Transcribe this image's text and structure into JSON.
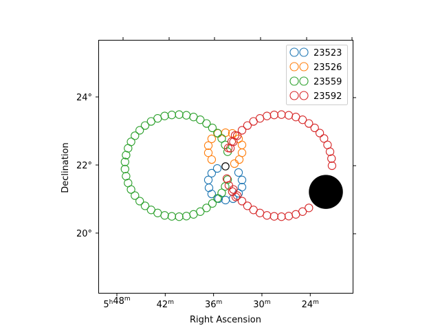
{
  "chart_data": {
    "type": "scatter",
    "title": "",
    "xlabel": "Right Ascension",
    "ylabel": "Declination",
    "x_units": "RA minutes past 5h",
    "y_units": "degrees",
    "xlim": [
      50.3,
      18.7
    ],
    "ylim": [
      18.3,
      25.7
    ],
    "x_inverted": true,
    "grid": false,
    "legend_position": "top-right",
    "x_ticks": [
      {
        "value": 48,
        "parts": [
          [
            "5",
            "h"
          ],
          [
            "48",
            "m"
          ]
        ]
      },
      {
        "value": 42,
        "parts": [
          [
            "42",
            "m"
          ]
        ]
      },
      {
        "value": 36,
        "parts": [
          [
            "36",
            "m"
          ]
        ]
      },
      {
        "value": 30,
        "parts": [
          [
            "30",
            "m"
          ]
        ]
      },
      {
        "value": 24,
        "parts": [
          [
            "24",
            "m"
          ]
        ]
      }
    ],
    "y_ticks": [
      {
        "value": 24,
        "label": "24°"
      },
      {
        "value": 22,
        "label": "22°"
      },
      {
        "value": 20,
        "label": "20°"
      }
    ],
    "marker": "open-circle",
    "series": [
      {
        "name": "23523",
        "color": "#1f77b4",
        "points": [
          [
            35.54,
            21.9
          ],
          [
            36.23,
            21.76
          ],
          [
            36.65,
            21.56
          ],
          [
            36.57,
            21.33
          ],
          [
            36.23,
            21.15
          ],
          [
            35.37,
            21.01
          ],
          [
            34.52,
            20.97
          ],
          [
            33.58,
            21.01
          ],
          [
            32.9,
            21.17
          ],
          [
            32.47,
            21.35
          ],
          [
            32.47,
            21.56
          ],
          [
            32.9,
            21.78
          ]
        ]
      },
      {
        "name": "23526",
        "color": "#ff7f0e",
        "points": [
          [
            36.65,
            22.36
          ],
          [
            36.65,
            22.57
          ],
          [
            36.23,
            22.77
          ],
          [
            35.46,
            22.93
          ],
          [
            34.52,
            22.95
          ],
          [
            33.67,
            22.93
          ],
          [
            32.9,
            22.77
          ],
          [
            32.47,
            22.59
          ],
          [
            32.47,
            22.36
          ],
          [
            32.81,
            22.16
          ],
          [
            33.41,
            22.04
          ],
          [
            36.23,
            22.16
          ]
        ]
      },
      {
        "name": "23559",
        "color": "#2ca02c",
        "points": [
          [
            34.25,
            22.39
          ],
          [
            34.56,
            22.59
          ],
          [
            34.99,
            22.78
          ],
          [
            35.52,
            22.94
          ],
          [
            36.15,
            23.09
          ],
          [
            36.87,
            23.22
          ],
          [
            37.65,
            23.33
          ],
          [
            38.49,
            23.41
          ],
          [
            39.37,
            23.46
          ],
          [
            40.27,
            23.48
          ],
          [
            41.18,
            23.47
          ],
          [
            42.07,
            23.44
          ],
          [
            42.94,
            23.37
          ],
          [
            43.75,
            23.28
          ],
          [
            44.5,
            23.16
          ],
          [
            45.17,
            23.02
          ],
          [
            45.76,
            22.86
          ],
          [
            46.24,
            22.68
          ],
          [
            46.61,
            22.49
          ],
          [
            46.86,
            22.29
          ],
          [
            46.99,
            22.09
          ],
          [
            46.99,
            21.88
          ],
          [
            46.86,
            21.67
          ],
          [
            46.61,
            21.47
          ],
          [
            46.24,
            21.28
          ],
          [
            45.76,
            21.1
          ],
          [
            45.17,
            20.94
          ],
          [
            44.5,
            20.8
          ],
          [
            43.75,
            20.68
          ],
          [
            42.94,
            20.59
          ],
          [
            42.07,
            20.52
          ],
          [
            41.18,
            20.49
          ],
          [
            40.27,
            20.48
          ],
          [
            39.37,
            20.5
          ],
          [
            38.49,
            20.55
          ],
          [
            37.65,
            20.63
          ],
          [
            36.87,
            20.74
          ],
          [
            36.15,
            20.87
          ],
          [
            35.52,
            21.02
          ],
          [
            34.99,
            21.18
          ],
          [
            34.56,
            21.37
          ],
          [
            34.25,
            21.57
          ]
        ]
      },
      {
        "name": "23592",
        "color": "#d62728",
        "points": [
          [
            21.3,
            21.98
          ],
          [
            21.36,
            22.19
          ],
          [
            21.55,
            22.39
          ],
          [
            21.86,
            22.59
          ],
          [
            22.29,
            22.78
          ],
          [
            22.82,
            22.94
          ],
          [
            23.45,
            23.09
          ],
          [
            24.17,
            23.22
          ],
          [
            24.95,
            23.33
          ],
          [
            25.79,
            23.41
          ],
          [
            26.67,
            23.46
          ],
          [
            27.57,
            23.48
          ],
          [
            28.48,
            23.47
          ],
          [
            29.37,
            23.44
          ],
          [
            30.24,
            23.37
          ],
          [
            31.05,
            23.28
          ],
          [
            31.8,
            23.16
          ],
          [
            32.47,
            23.02
          ],
          [
            33.06,
            22.86
          ],
          [
            33.54,
            22.68
          ],
          [
            33.91,
            22.49
          ],
          [
            33.32,
            22.87
          ],
          [
            33.75,
            22.69
          ],
          [
            34.18,
            22.5
          ],
          [
            34.35,
            21.6
          ],
          [
            34.1,
            21.4
          ],
          [
            33.67,
            21.22
          ],
          [
            33.24,
            21.06
          ],
          [
            33.54,
            21.28
          ],
          [
            33.06,
            21.1
          ],
          [
            32.47,
            20.94
          ],
          [
            31.8,
            20.8
          ],
          [
            31.05,
            20.68
          ],
          [
            30.24,
            20.59
          ],
          [
            29.37,
            20.52
          ],
          [
            28.48,
            20.49
          ],
          [
            27.57,
            20.48
          ],
          [
            26.67,
            20.5
          ],
          [
            25.79,
            20.55
          ],
          [
            24.95,
            20.63
          ],
          [
            24.17,
            20.74
          ]
        ]
      }
    ],
    "extra_markers": [
      {
        "kind": "open-circle",
        "color": "#000000",
        "point": [
          34.52,
          21.96
        ]
      },
      {
        "kind": "filled-disk",
        "color": "#000000",
        "point": [
          22.06,
          21.21
        ],
        "radius_deg": 0.5
      }
    ]
  }
}
